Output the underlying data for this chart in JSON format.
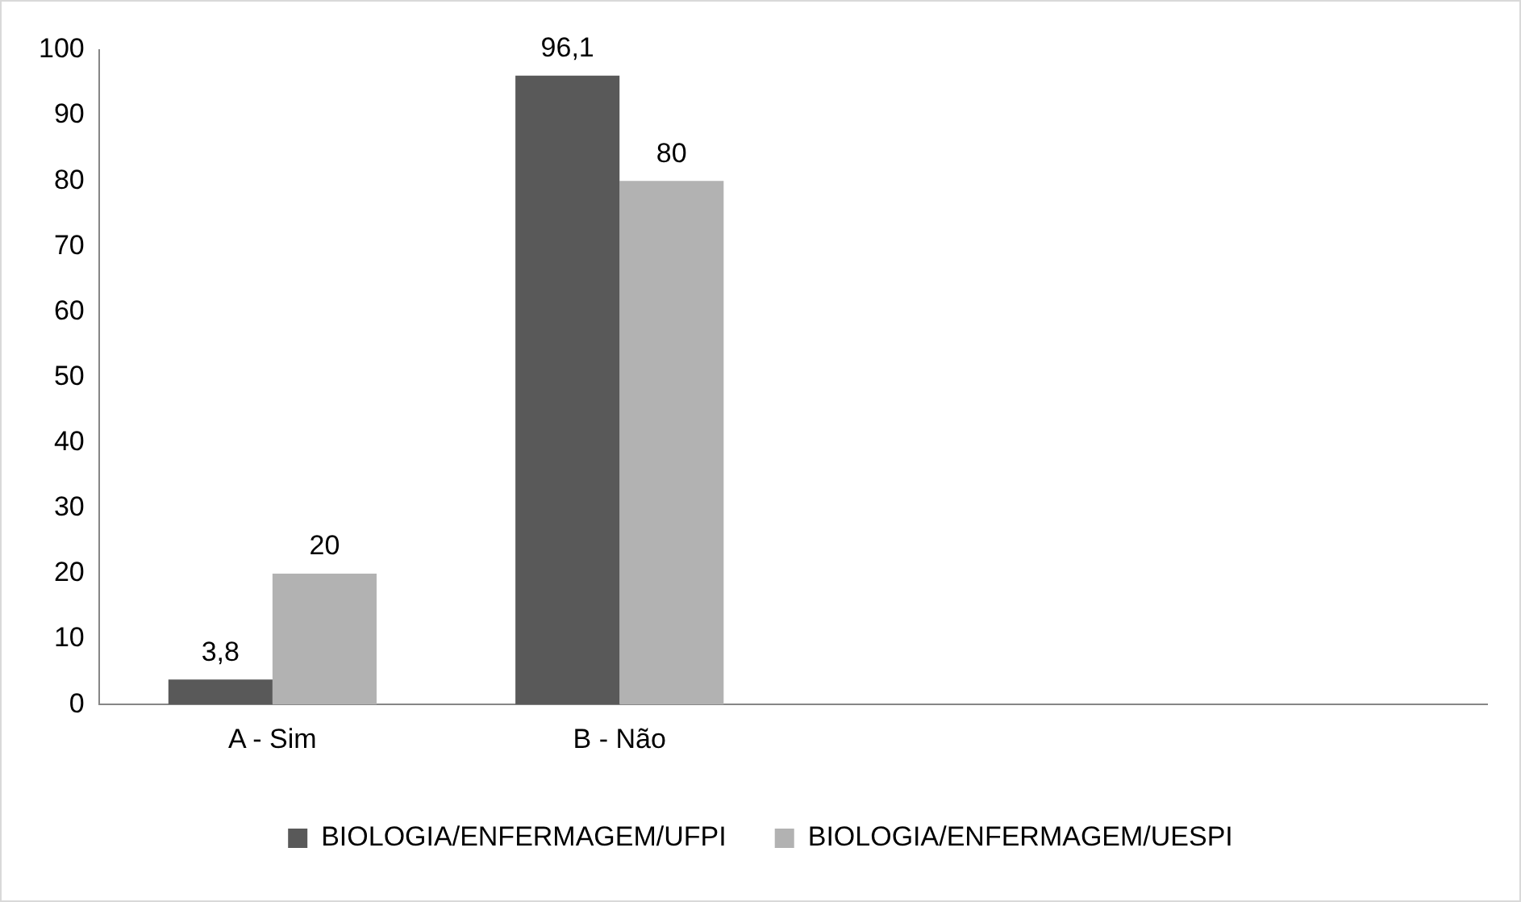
{
  "chart_data": {
    "type": "bar",
    "categories": [
      "A - Sim",
      "B - Não",
      null,
      null
    ],
    "series": [
      {
        "name": "BIOLOGIA/ENFERMAGEM/UFPI",
        "color": "#595959",
        "values": [
          3.8,
          96.1,
          null,
          null
        ],
        "value_labels": [
          "3,8",
          "96,1",
          null,
          null
        ]
      },
      {
        "name": "BIOLOGIA/ENFERMAGEM/UESPI",
        "color": "#b2b2b2",
        "values": [
          20,
          80,
          null,
          null
        ],
        "value_labels": [
          "20",
          "80",
          null,
          null
        ]
      }
    ],
    "ylim": [
      0,
      100
    ],
    "yticks": [
      0,
      10,
      20,
      30,
      40,
      50,
      60,
      70,
      80,
      90,
      100
    ],
    "grid": false,
    "legend": "bottom"
  }
}
